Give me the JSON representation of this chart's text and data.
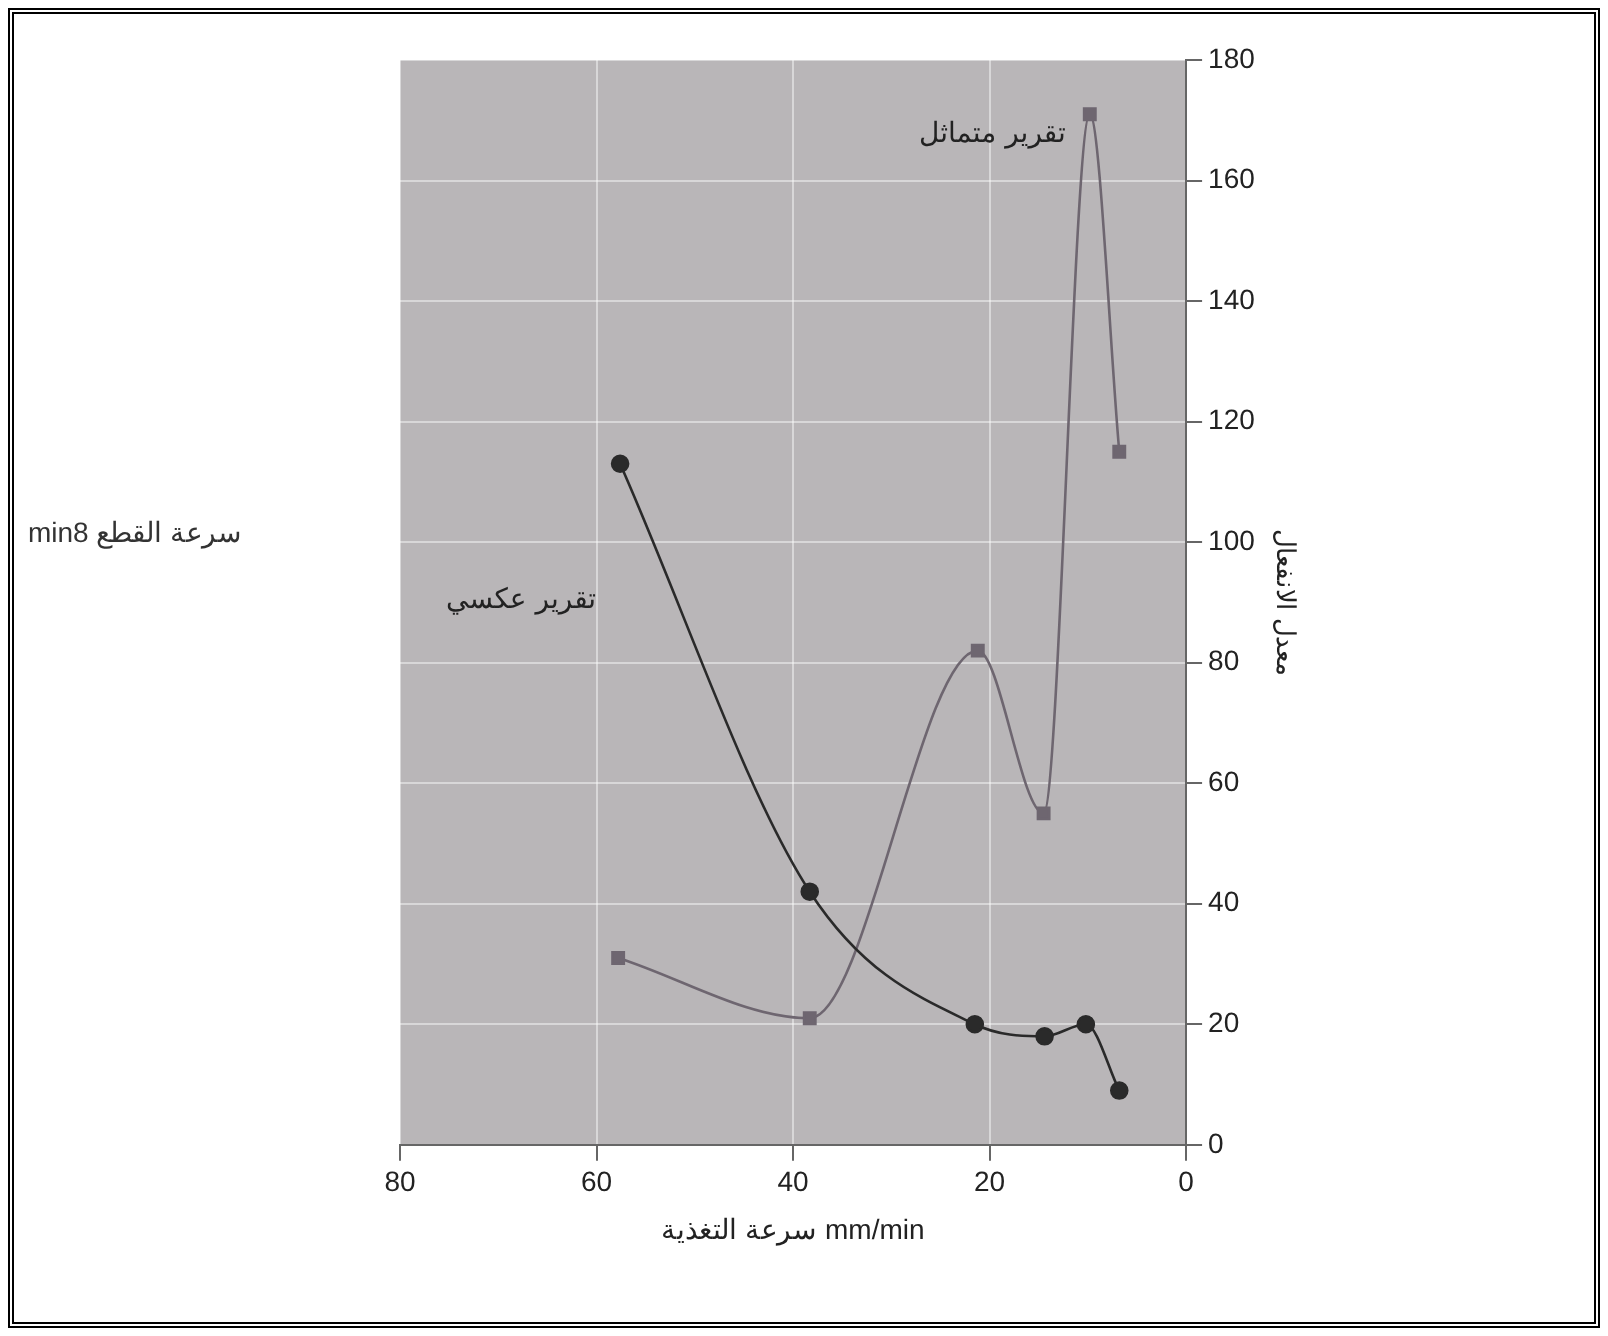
{
  "chart_data": {
    "type": "line",
    "xlabel": "سرعة التغذية mm/min",
    "ylabel": "معدل الانفعال",
    "annotations": [
      "سرعة القطع min8"
    ],
    "xlim": [
      80,
      0
    ],
    "xticks": [
      80,
      60,
      40,
      20,
      0
    ],
    "ylim": [
      0,
      180
    ],
    "yticks": [
      0,
      20,
      40,
      60,
      80,
      100,
      120,
      140,
      160,
      180
    ],
    "grid": true,
    "legend": false,
    "series": [
      {
        "name": "تقرير عكسي",
        "color": "#2a2a2a",
        "marker": "circle",
        "x": [
          57.6,
          38.3,
          21.5,
          14.4,
          10.2,
          6.8
        ],
        "values": [
          113,
          42,
          20,
          18,
          20,
          9
        ]
      },
      {
        "name": "تقرير متماثل",
        "color": "#6e6670",
        "marker": "square",
        "x": [
          57.8,
          38.3,
          21.2,
          14.5,
          9.8,
          6.8
        ],
        "values": [
          31,
          21,
          82,
          55,
          171,
          115
        ]
      }
    ]
  }
}
